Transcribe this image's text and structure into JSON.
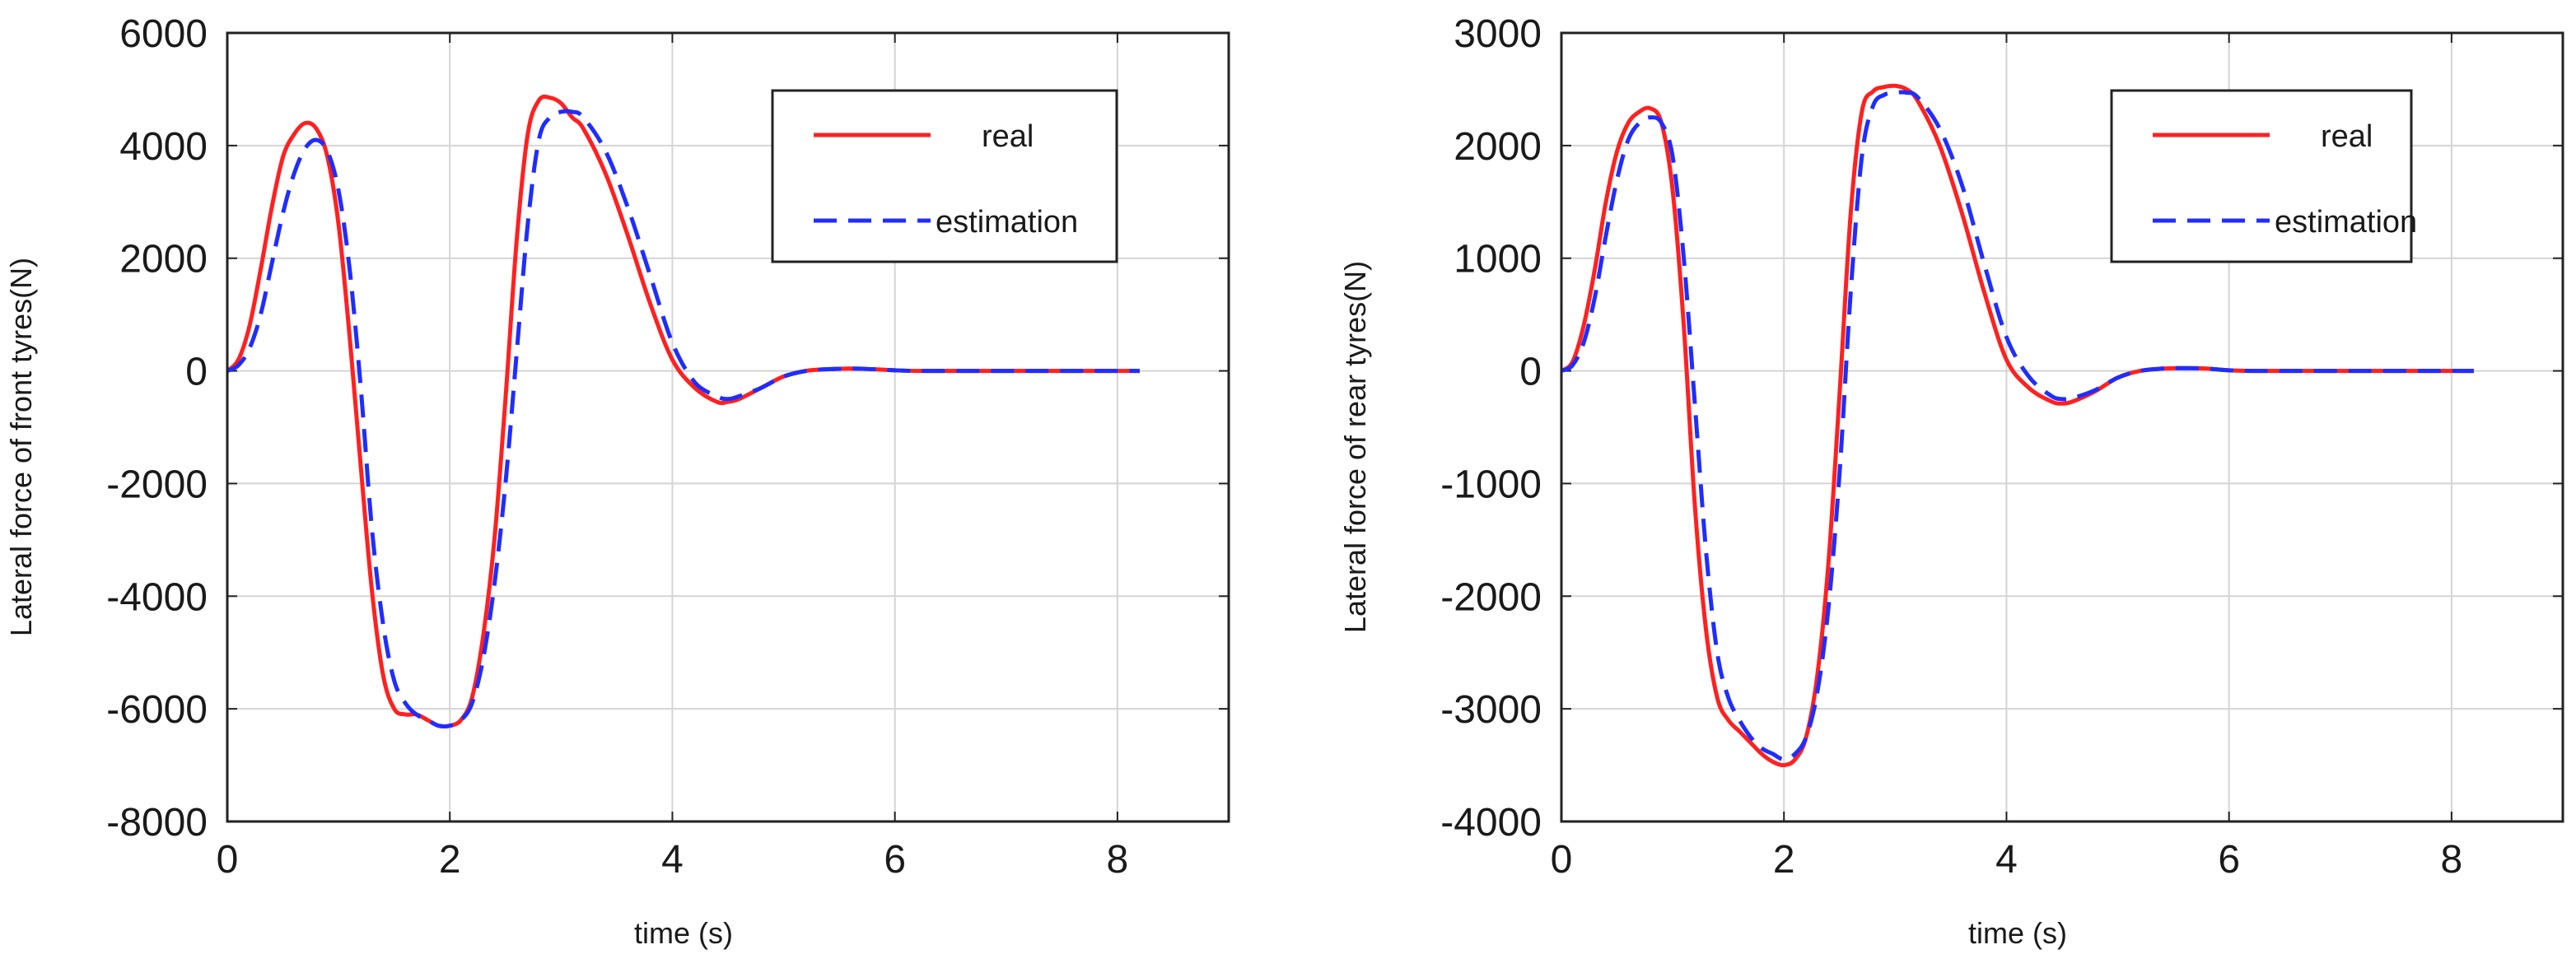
{
  "chart_data": [
    {
      "type": "line",
      "title": "",
      "xlabel": "time (s)",
      "ylabel": "Lateral force of front tyres(N)",
      "xlim": [
        0,
        9
      ],
      "ylim": [
        -8000,
        6000
      ],
      "xticks": [
        0,
        2,
        4,
        6,
        8
      ],
      "xtick_labels": [
        "0",
        "2",
        "4",
        "6",
        "8"
      ],
      "yticks": [
        6000,
        4000,
        2000,
        0,
        -2000,
        -4000,
        -6000,
        -8000
      ],
      "ytick_labels": [
        "6000",
        "4000",
        "2000",
        "0",
        "-2000",
        "-4000",
        "-6000",
        "-8000"
      ],
      "grid": true,
      "legend_position": "top-right",
      "series": [
        {
          "name": "real",
          "color": "#ff2020",
          "style": "solid",
          "x": [
            0,
            0.1,
            0.2,
            0.3,
            0.4,
            0.5,
            0.6,
            0.7,
            0.8,
            0.9,
            1.0,
            1.1,
            1.2,
            1.3,
            1.4,
            1.5,
            1.6,
            1.7,
            1.8,
            1.9,
            2.0,
            2.1,
            2.2,
            2.3,
            2.4,
            2.5,
            2.6,
            2.7,
            2.8,
            2.9,
            3.0,
            3.1,
            3.2,
            3.4,
            3.6,
            3.8,
            4.0,
            4.2,
            4.4,
            4.5,
            4.6,
            4.8,
            5.0,
            5.2,
            5.4,
            5.6,
            5.8,
            6.0,
            6.2,
            6.5,
            7.0,
            7.5,
            8.0,
            8.2
          ],
          "y": [
            0,
            200,
            800,
            1800,
            2900,
            3800,
            4200,
            4400,
            4300,
            3800,
            2600,
            600,
            -1700,
            -3900,
            -5400,
            -6000,
            -6100,
            -6100,
            -6200,
            -6300,
            -6300,
            -6200,
            -5800,
            -4700,
            -3000,
            -500,
            2300,
            4200,
            4800,
            4850,
            4750,
            4500,
            4300,
            3500,
            2400,
            1200,
            200,
            -300,
            -550,
            -550,
            -500,
            -300,
            -100,
            0,
            30,
            40,
            30,
            10,
            0,
            0,
            0,
            0,
            0,
            0
          ]
        },
        {
          "name": "estimation",
          "color": "#1f2dff",
          "style": "dashed",
          "x": [
            0,
            0.1,
            0.2,
            0.3,
            0.4,
            0.5,
            0.6,
            0.7,
            0.8,
            0.9,
            1.0,
            1.1,
            1.2,
            1.3,
            1.4,
            1.5,
            1.6,
            1.7,
            1.8,
            1.9,
            2.0,
            2.1,
            2.2,
            2.3,
            2.4,
            2.5,
            2.6,
            2.7,
            2.8,
            2.9,
            3.0,
            3.1,
            3.2,
            3.4,
            3.6,
            3.8,
            4.0,
            4.2,
            4.4,
            4.5,
            4.6,
            4.8,
            5.0,
            5.2,
            5.4,
            5.6,
            5.8,
            6.0,
            6.2,
            6.5,
            7.0,
            7.5,
            8.0,
            8.2
          ],
          "y": [
            0,
            100,
            400,
            1000,
            1900,
            2800,
            3500,
            3950,
            4100,
            3900,
            3200,
            1800,
            -300,
            -2800,
            -4500,
            -5500,
            -5900,
            -6100,
            -6200,
            -6300,
            -6300,
            -6200,
            -5900,
            -5100,
            -3800,
            -2000,
            300,
            2600,
            4100,
            4500,
            4600,
            4600,
            4500,
            3900,
            2900,
            1700,
            500,
            -200,
            -450,
            -500,
            -450,
            -300,
            -100,
            0,
            30,
            40,
            30,
            10,
            0,
            0,
            0,
            0,
            0,
            0
          ]
        }
      ]
    },
    {
      "type": "line",
      "title": "",
      "xlabel": "time (s)",
      "ylabel": "Lateral force of rear tyres(N)",
      "xlim": [
        0,
        9
      ],
      "ylim": [
        -4000,
        3000
      ],
      "xticks": [
        0,
        2,
        4,
        6,
        8
      ],
      "xtick_labels": [
        "0",
        "2",
        "4",
        "6",
        "8"
      ],
      "yticks": [
        3000,
        2000,
        1000,
        0,
        -1000,
        -2000,
        -3000,
        -4000
      ],
      "ytick_labels": [
        "3000",
        "2000",
        "1000",
        "0",
        "-1000",
        "-2000",
        "-3000",
        "-4000"
      ],
      "grid": true,
      "legend_position": "top-right",
      "series": [
        {
          "name": "real",
          "color": "#ff2020",
          "style": "solid",
          "x": [
            0,
            0.1,
            0.2,
            0.3,
            0.4,
            0.5,
            0.6,
            0.7,
            0.8,
            0.9,
            1.0,
            1.1,
            1.2,
            1.3,
            1.4,
            1.5,
            1.6,
            1.7,
            1.8,
            1.9,
            2.0,
            2.1,
            2.2,
            2.3,
            2.4,
            2.5,
            2.6,
            2.7,
            2.8,
            2.9,
            3.0,
            3.1,
            3.2,
            3.4,
            3.6,
            3.8,
            4.0,
            4.2,
            4.4,
            4.5,
            4.6,
            4.8,
            5.0,
            5.2,
            5.4,
            5.6,
            5.8,
            6.0,
            6.2,
            6.5,
            7.0,
            7.5,
            8.0,
            8.2
          ],
          "y": [
            0,
            80,
            400,
            900,
            1500,
            1950,
            2200,
            2300,
            2330,
            2200,
            1600,
            400,
            -1200,
            -2300,
            -2900,
            -3100,
            -3200,
            -3300,
            -3400,
            -3470,
            -3500,
            -3450,
            -3250,
            -2700,
            -1700,
            -200,
            1400,
            2300,
            2480,
            2520,
            2530,
            2500,
            2400,
            2000,
            1400,
            700,
            100,
            -150,
            -270,
            -290,
            -270,
            -180,
            -60,
            0,
            20,
            25,
            20,
            5,
            0,
            0,
            0,
            0,
            0,
            0
          ]
        },
        {
          "name": "estimation",
          "color": "#1f2dff",
          "style": "dashed",
          "x": [
            0,
            0.1,
            0.2,
            0.3,
            0.4,
            0.5,
            0.6,
            0.7,
            0.8,
            0.9,
            1.0,
            1.1,
            1.2,
            1.3,
            1.4,
            1.5,
            1.6,
            1.7,
            1.8,
            1.9,
            2.0,
            2.1,
            2.2,
            2.3,
            2.4,
            2.5,
            2.6,
            2.7,
            2.8,
            2.9,
            3.0,
            3.1,
            3.2,
            3.4,
            3.6,
            3.8,
            4.0,
            4.2,
            4.4,
            4.5,
            4.6,
            4.8,
            5.0,
            5.2,
            5.4,
            5.6,
            5.8,
            6.0,
            6.2,
            6.5,
            7.0,
            7.5,
            8.0,
            8.2
          ],
          "y": [
            0,
            50,
            250,
            650,
            1200,
            1700,
            2050,
            2200,
            2250,
            2200,
            1900,
            1000,
            -300,
            -1600,
            -2500,
            -2900,
            -3100,
            -3250,
            -3350,
            -3400,
            -3450,
            -3400,
            -3250,
            -2850,
            -2100,
            -900,
            700,
            1900,
            2350,
            2450,
            2470,
            2470,
            2430,
            2150,
            1650,
            950,
            300,
            -50,
            -220,
            -250,
            -240,
            -170,
            -60,
            0,
            20,
            25,
            20,
            5,
            0,
            0,
            0,
            0,
            0,
            0
          ]
        }
      ]
    }
  ]
}
